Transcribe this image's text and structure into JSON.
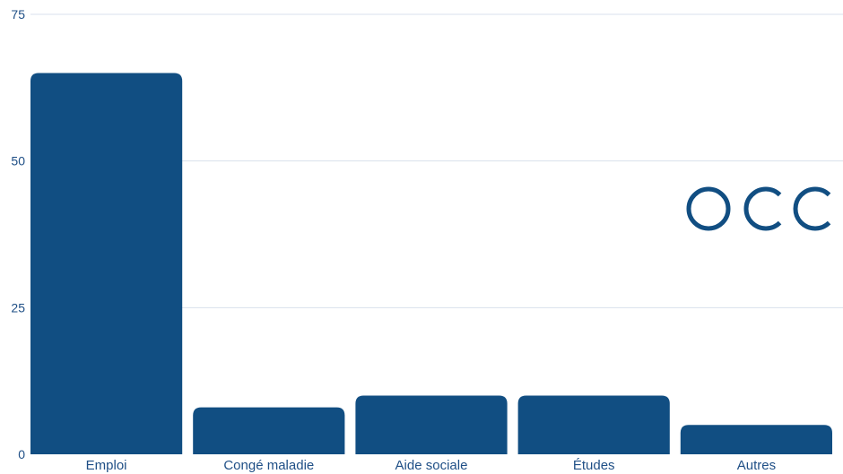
{
  "chart_data": {
    "type": "bar",
    "categories": [
      "Emploi",
      "Congé maladie",
      "Aide sociale",
      "Études",
      "Autres"
    ],
    "values": [
      65,
      8,
      10,
      10,
      5
    ],
    "ylim": [
      0,
      75
    ],
    "yticks": [
      "0",
      "25",
      "50",
      "75"
    ],
    "grid": true,
    "bar_color": "#114e82"
  },
  "logo": {
    "text": "OCC",
    "color": "#114e82"
  }
}
